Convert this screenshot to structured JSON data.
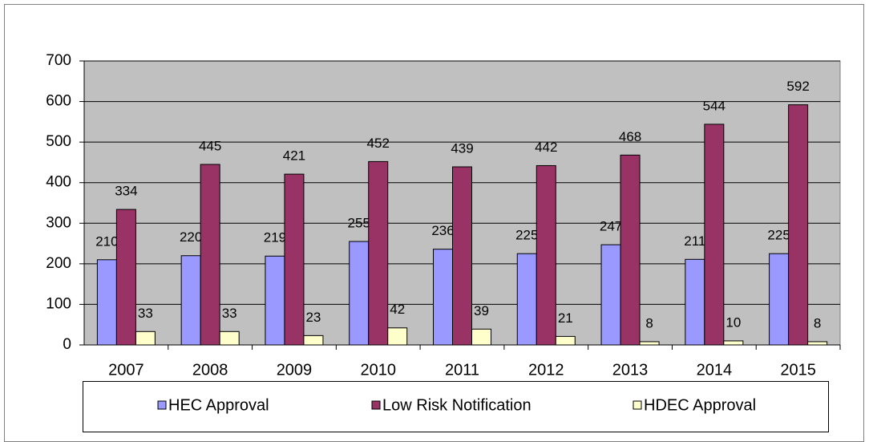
{
  "chart_data": {
    "type": "bar",
    "categories": [
      "2007",
      "2008",
      "2009",
      "2010",
      "2011",
      "2012",
      "2013",
      "2014",
      "2015"
    ],
    "series": [
      {
        "name": "HEC Approval",
        "color": "#9999ff",
        "values": [
          210,
          220,
          219,
          255,
          236,
          225,
          247,
          211,
          225
        ]
      },
      {
        "name": "Low Risk Notification",
        "color": "#993366",
        "values": [
          334,
          445,
          421,
          452,
          439,
          442,
          468,
          544,
          592
        ]
      },
      {
        "name": "HDEC Approval",
        "color": "#ffffcc",
        "values": [
          33,
          33,
          23,
          42,
          39,
          21,
          8,
          10,
          8
        ]
      }
    ],
    "ylim": [
      0,
      700
    ],
    "yticks": [
      0,
      100,
      200,
      300,
      400,
      500,
      600,
      700
    ],
    "grid": true,
    "legend": "bottom",
    "plot_background": "#c0c0c0"
  }
}
